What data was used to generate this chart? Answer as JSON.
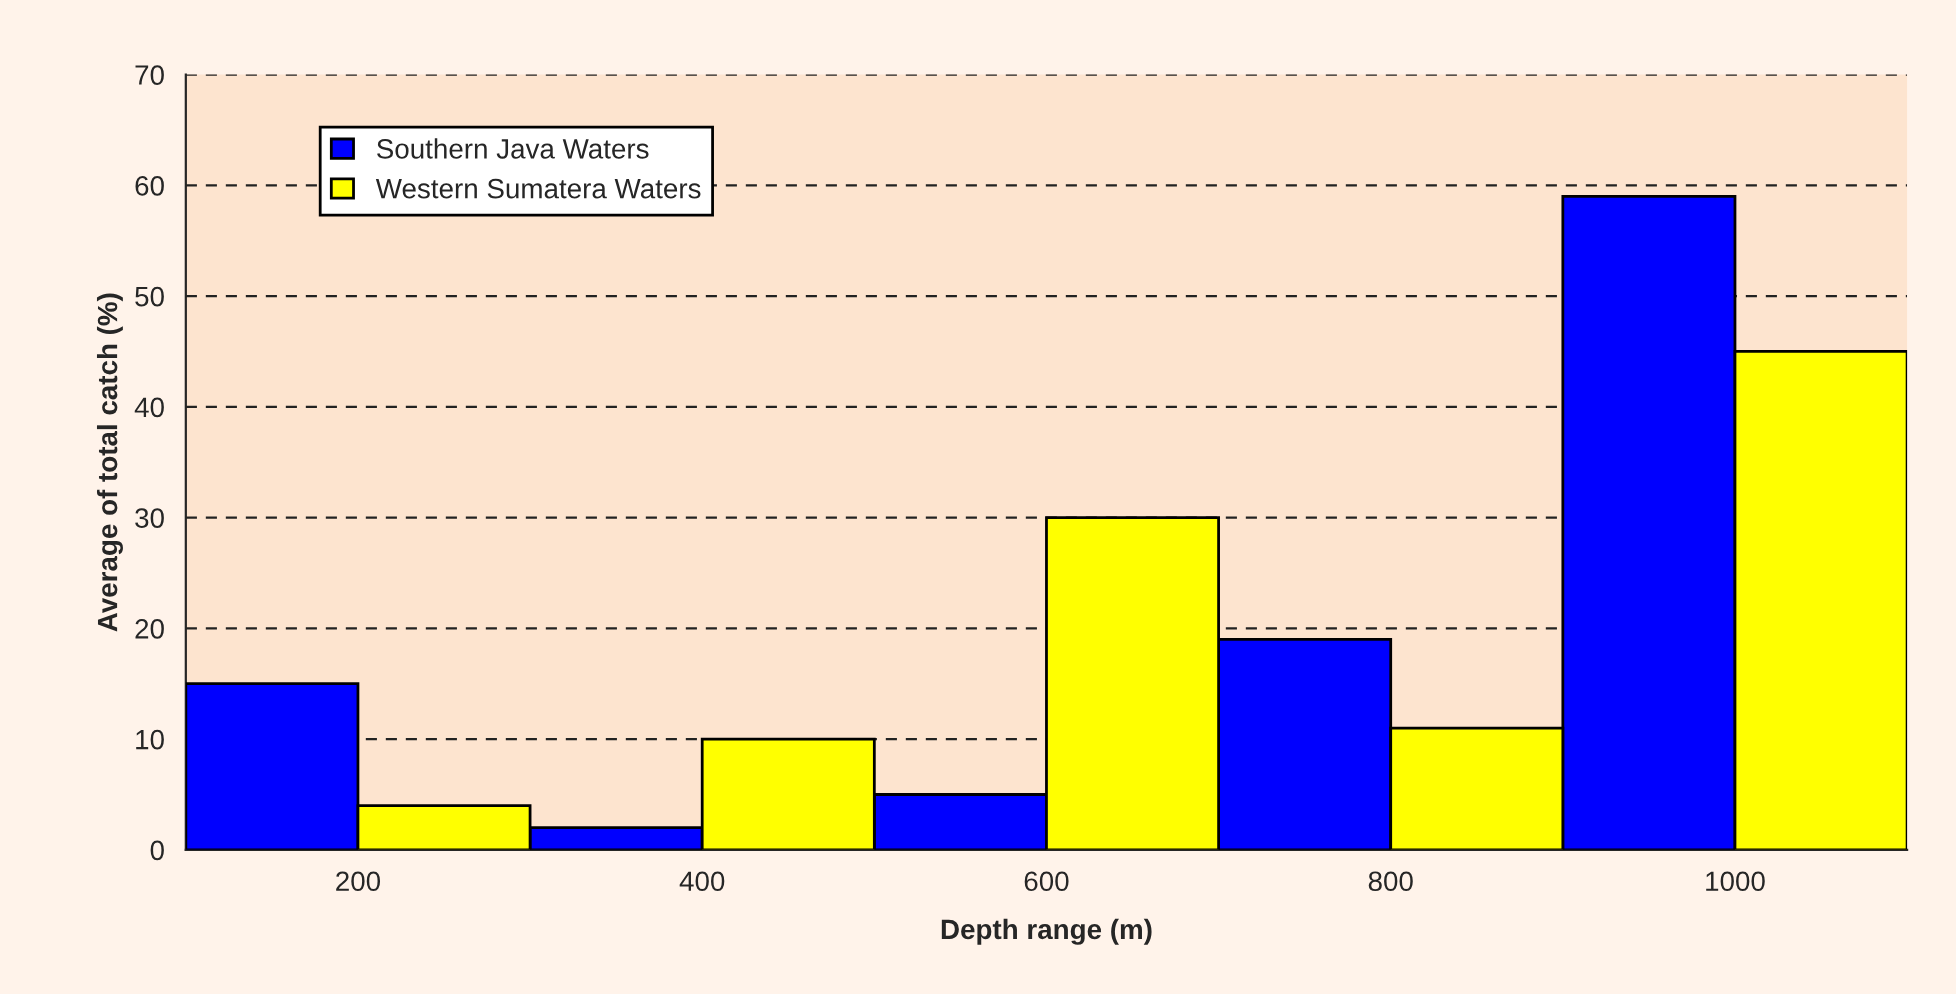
{
  "chart_data": {
    "type": "bar",
    "xlabel": "Depth range (m)",
    "ylabel": "Average of total catch (%)",
    "categories": [
      "200",
      "400",
      "600",
      "800",
      "1000"
    ],
    "series": [
      {
        "name": "Southern Java Waters",
        "color": "#0000ff",
        "values": [
          15,
          2,
          5,
          19,
          59
        ]
      },
      {
        "name": "Western Sumatera Waters",
        "color": "#ffff00",
        "values": [
          4,
          10,
          30,
          11,
          45
        ]
      }
    ],
    "ylim": [
      0,
      70
    ],
    "yticks": [
      0,
      10,
      20,
      30,
      40,
      50,
      60,
      70
    ],
    "grid": "y",
    "legend": "top left"
  }
}
